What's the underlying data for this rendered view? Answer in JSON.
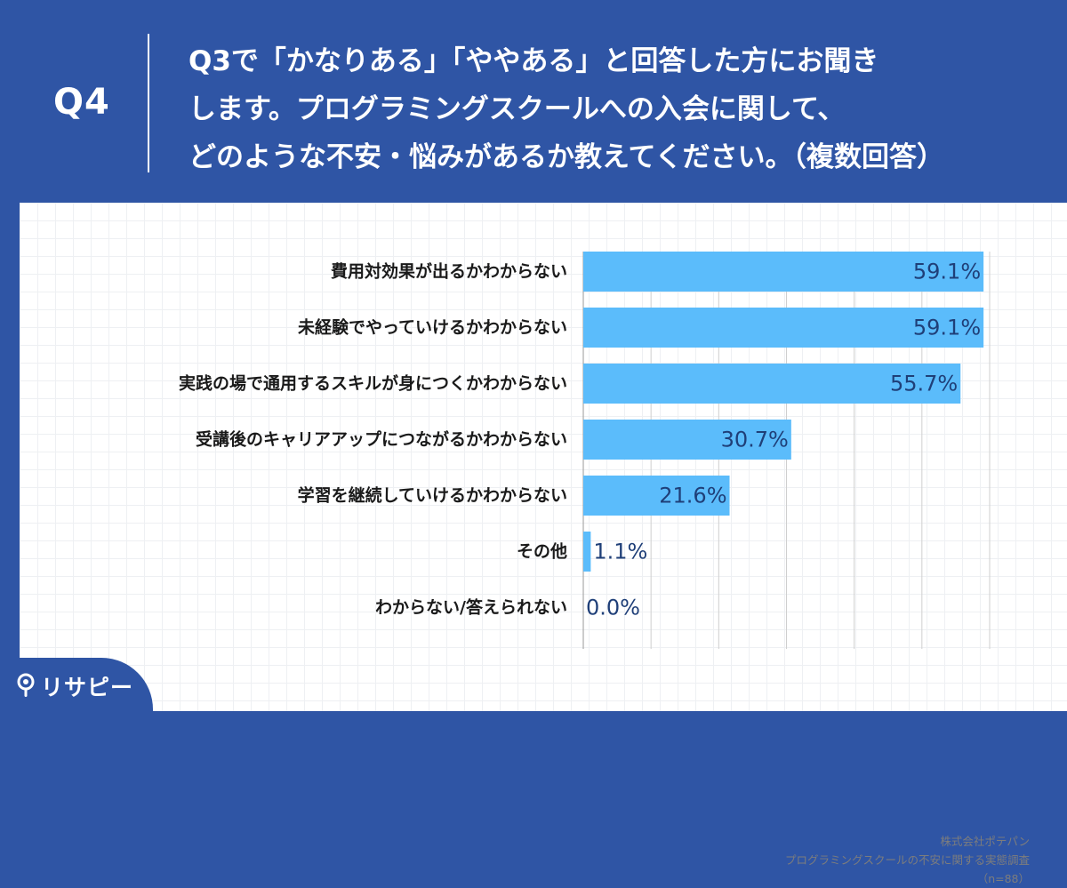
{
  "header": {
    "question_number": "Q4",
    "question_lines": [
      "Q3で「かなりある」「ややある」と回答した方にお聞き",
      "します。プログラミングスクールへの入会に関して、",
      "どのような不安・悩みがあるか教えてください。（複数回答）"
    ]
  },
  "colors": {
    "header_bg": "#2f55a5",
    "bar": "#5bbcfb",
    "value_text": "#1f3f78"
  },
  "chart_data": {
    "type": "bar",
    "orientation": "horizontal",
    "categories": [
      "費用対効果が出るかわからない",
      "未経験でやっていけるかわからない",
      "実践の場で通用するスキルが身につくかわからない",
      "受講後のキャリアアップにつながるかわからない",
      "学習を継続していけるかわからない",
      "その他",
      "わからない/答えられない"
    ],
    "values": [
      59.1,
      59.1,
      55.7,
      30.7,
      21.6,
      1.1,
      0.0
    ],
    "value_labels": [
      "59.1%",
      "59.1%",
      "55.7%",
      "30.7%",
      "21.6%",
      "1.1%",
      "0.0%"
    ],
    "xlim": [
      0,
      60
    ],
    "grid": true
  },
  "source": {
    "company": "株式会社ポテパン",
    "survey": "プログラミングスクールの不安に関する実態調査",
    "sample": "（n=88）"
  },
  "logo": {
    "text": "リサピー",
    "icon": "pin-icon"
  }
}
